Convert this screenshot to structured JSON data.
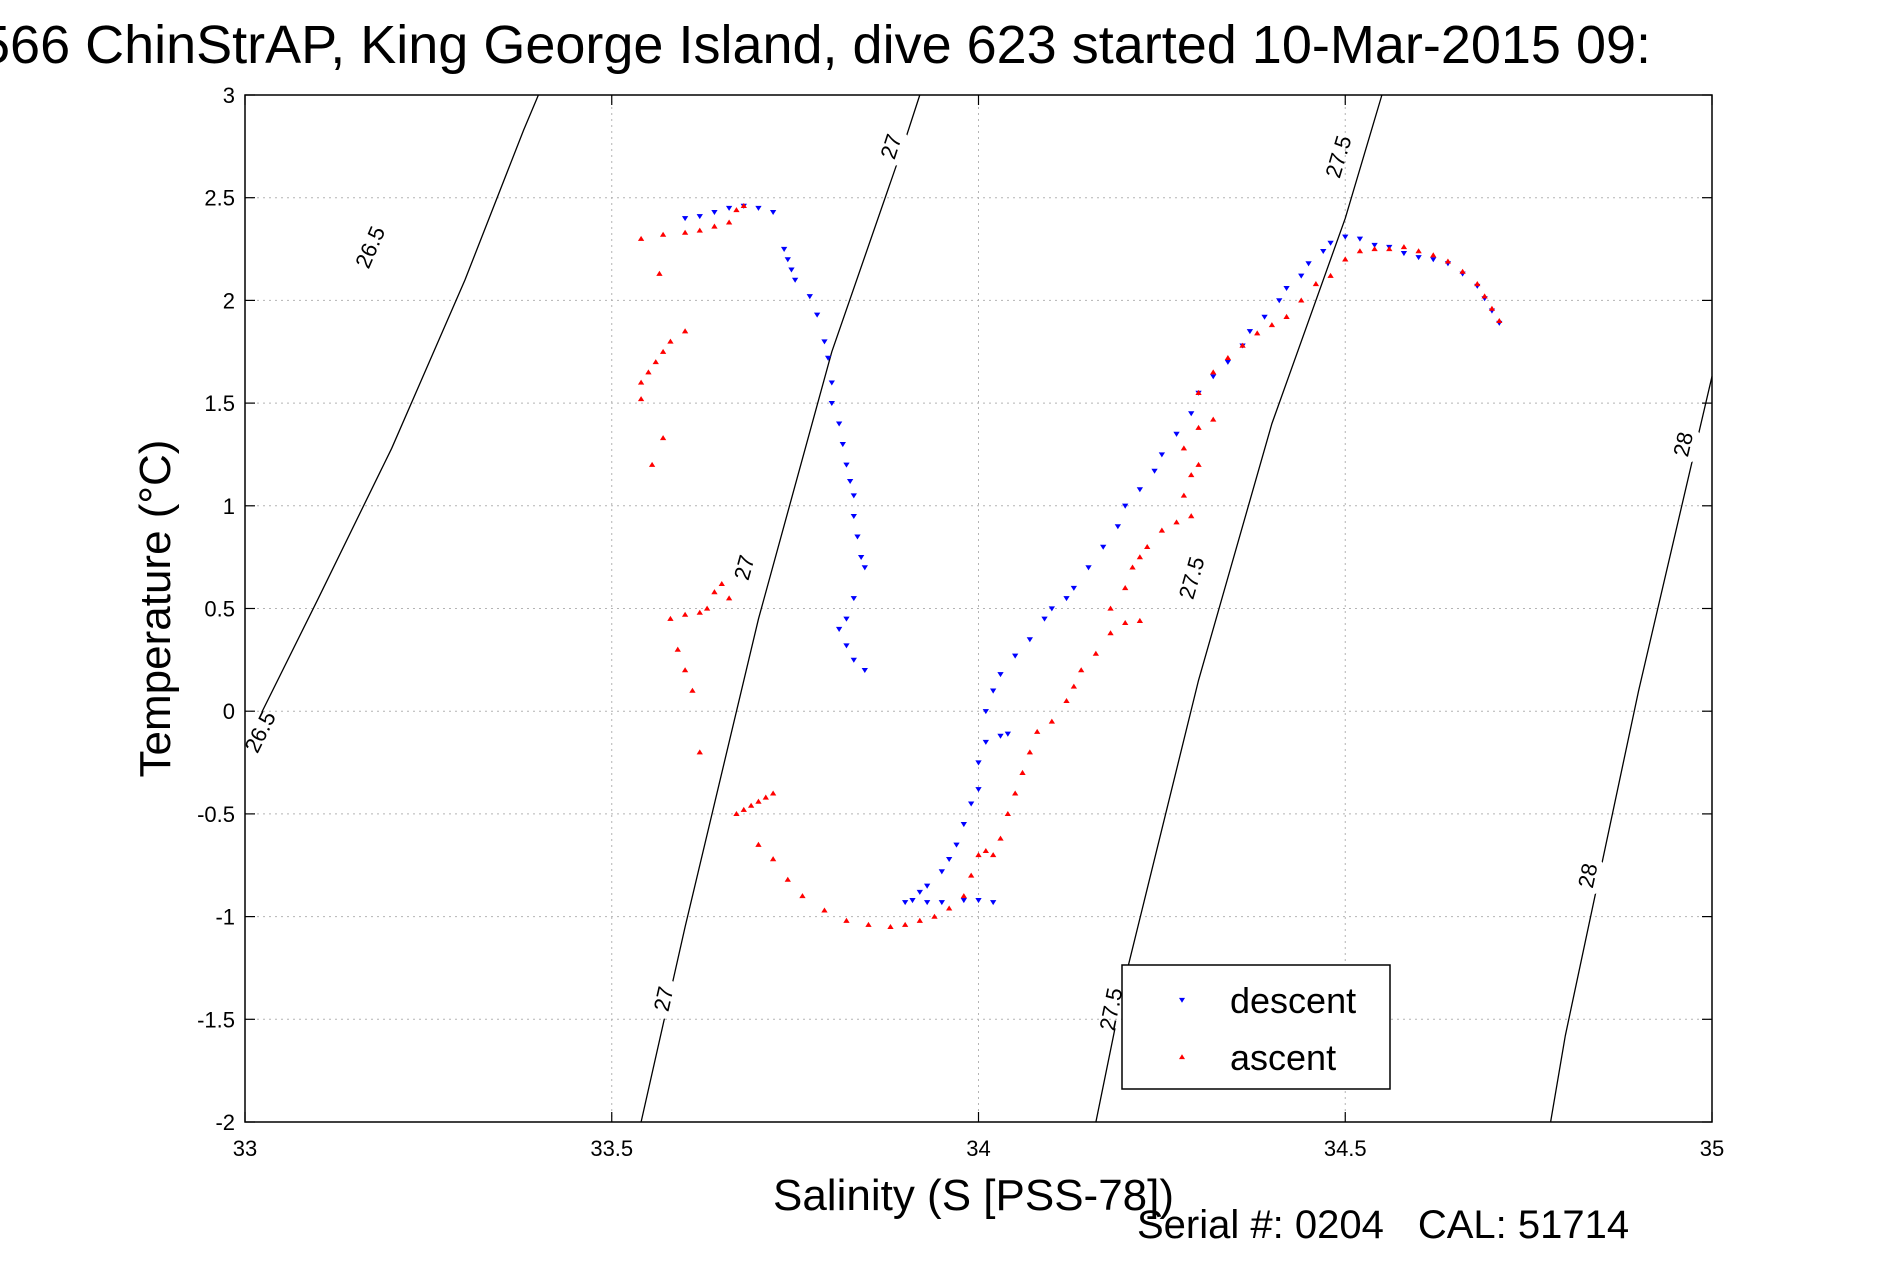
{
  "title": "566 ChinStrAP, King George Island, dive 623 started 10-Mar-2015 09:",
  "footer": {
    "serial": "Serial #: 0204",
    "cal": "CAL: 51714"
  },
  "colors": {
    "descent": "#0000ff",
    "ascent": "#ff0000",
    "axis": "#000000",
    "grid": "#b4b4b4",
    "isopycnal": "#000000"
  },
  "chart_data": {
    "type": "scatter",
    "xlabel": "Salinity (S [PSS-78])",
    "ylabel": "Temperature (°C)",
    "xlim": [
      33,
      35
    ],
    "ylim": [
      -2,
      3
    ],
    "xticks": [
      "33",
      "33.5",
      "34",
      "34.5",
      "35"
    ],
    "yticks": [
      "3",
      "2.5",
      "2",
      "1.5",
      "1",
      "0.5",
      "0",
      "-0.5",
      "-1",
      "-1.5",
      "-2"
    ],
    "grid": true,
    "legend": {
      "position": "bottom-right",
      "entries": [
        "descent",
        "ascent"
      ]
    },
    "isopycnals": [
      {
        "level": "26.5",
        "points": [
          [
            33.0,
            -0.17
          ],
          [
            33.1,
            0.55
          ],
          [
            33.2,
            1.28
          ],
          [
            33.3,
            2.1
          ],
          [
            33.38,
            2.83
          ],
          [
            33.4,
            3.0
          ]
        ],
        "labels": [
          [
            33.02,
            -0.1
          ],
          [
            33.17,
            2.26
          ]
        ]
      },
      {
        "level": "27",
        "points": [
          [
            33.54,
            -2.0
          ],
          [
            33.6,
            -1.05
          ],
          [
            33.7,
            0.45
          ],
          [
            33.8,
            1.75
          ],
          [
            33.9,
            2.78
          ],
          [
            33.92,
            3.0
          ]
        ],
        "labels": [
          [
            33.57,
            -1.4
          ],
          [
            33.68,
            0.7
          ],
          [
            33.88,
            2.75
          ]
        ]
      },
      {
        "level": "27.5",
        "points": [
          [
            34.16,
            -2.0
          ],
          [
            34.2,
            -1.3
          ],
          [
            34.3,
            0.15
          ],
          [
            34.4,
            1.4
          ],
          [
            34.5,
            2.4
          ],
          [
            34.55,
            3.0
          ]
        ],
        "labels": [
          [
            34.18,
            -1.45
          ],
          [
            34.29,
            0.65
          ],
          [
            34.49,
            2.7
          ]
        ]
      },
      {
        "level": "28",
        "points": [
          [
            34.78,
            -2.0
          ],
          [
            34.8,
            -1.58
          ],
          [
            34.9,
            0.1
          ],
          [
            35.0,
            1.63
          ]
        ],
        "labels": [
          [
            34.83,
            -0.8
          ],
          [
            34.96,
            1.3
          ]
        ]
      }
    ],
    "series": [
      {
        "name": "descent",
        "marker": "down-triangle",
        "points": [
          [
            33.6,
            2.4
          ],
          [
            33.62,
            2.41
          ],
          [
            33.64,
            2.43
          ],
          [
            33.66,
            2.45
          ],
          [
            33.68,
            2.46
          ],
          [
            33.7,
            2.45
          ],
          [
            33.72,
            2.43
          ],
          [
            33.735,
            2.25
          ],
          [
            33.74,
            2.2
          ],
          [
            33.745,
            2.15
          ],
          [
            33.75,
            2.1
          ],
          [
            33.77,
            2.02
          ],
          [
            33.78,
            1.93
          ],
          [
            33.79,
            1.8
          ],
          [
            33.795,
            1.72
          ],
          [
            33.8,
            1.6
          ],
          [
            33.8,
            1.5
          ],
          [
            33.81,
            1.4
          ],
          [
            33.815,
            1.3
          ],
          [
            33.82,
            1.2
          ],
          [
            33.825,
            1.12
          ],
          [
            33.83,
            1.05
          ],
          [
            33.83,
            0.95
          ],
          [
            33.835,
            0.85
          ],
          [
            33.84,
            0.75
          ],
          [
            33.845,
            0.7
          ],
          [
            33.83,
            0.55
          ],
          [
            33.82,
            0.45
          ],
          [
            33.81,
            0.4
          ],
          [
            33.82,
            0.32
          ],
          [
            33.83,
            0.25
          ],
          [
            33.845,
            0.2
          ],
          [
            33.9,
            -0.93
          ],
          [
            33.91,
            -0.92
          ],
          [
            33.92,
            -0.88
          ],
          [
            33.93,
            -0.85
          ],
          [
            33.95,
            -0.78
          ],
          [
            33.96,
            -0.72
          ],
          [
            33.97,
            -0.65
          ],
          [
            33.98,
            -0.55
          ],
          [
            33.99,
            -0.45
          ],
          [
            34.0,
            -0.38
          ],
          [
            34.0,
            -0.25
          ],
          [
            34.01,
            -0.15
          ],
          [
            34.03,
            -0.12
          ],
          [
            34.04,
            -0.11
          ],
          [
            34.01,
            0.0
          ],
          [
            34.02,
            0.1
          ],
          [
            34.03,
            0.18
          ],
          [
            34.05,
            0.27
          ],
          [
            34.07,
            0.35
          ],
          [
            34.09,
            0.45
          ],
          [
            34.1,
            0.5
          ],
          [
            34.12,
            0.55
          ],
          [
            34.13,
            0.6
          ],
          [
            34.15,
            0.7
          ],
          [
            34.17,
            0.8
          ],
          [
            34.19,
            0.9
          ],
          [
            34.2,
            1.0
          ],
          [
            34.22,
            1.08
          ],
          [
            34.24,
            1.17
          ],
          [
            34.25,
            1.25
          ],
          [
            34.27,
            1.35
          ],
          [
            34.29,
            1.45
          ],
          [
            34.3,
            1.55
          ],
          [
            34.32,
            1.63
          ],
          [
            34.34,
            1.7
          ],
          [
            34.36,
            1.78
          ],
          [
            34.37,
            1.85
          ],
          [
            34.39,
            1.92
          ],
          [
            34.41,
            2.0
          ],
          [
            34.42,
            2.06
          ],
          [
            34.44,
            2.12
          ],
          [
            34.45,
            2.18
          ],
          [
            34.47,
            2.24
          ],
          [
            34.48,
            2.28
          ],
          [
            34.5,
            2.31
          ],
          [
            34.52,
            2.3
          ],
          [
            34.54,
            2.27
          ],
          [
            34.56,
            2.26
          ],
          [
            34.58,
            2.23
          ],
          [
            34.6,
            2.21
          ],
          [
            34.62,
            2.2
          ],
          [
            34.64,
            2.18
          ],
          [
            34.66,
            2.13
          ],
          [
            34.68,
            2.07
          ],
          [
            34.69,
            2.01
          ],
          [
            34.7,
            1.95
          ],
          [
            34.71,
            1.89
          ],
          [
            33.93,
            -0.93
          ],
          [
            33.95,
            -0.93
          ],
          [
            33.98,
            -0.92
          ],
          [
            34.0,
            -0.92
          ],
          [
            34.02,
            -0.93
          ]
        ]
      },
      {
        "name": "ascent",
        "marker": "up-triangle",
        "points": [
          [
            33.54,
            2.3
          ],
          [
            33.57,
            2.32
          ],
          [
            33.6,
            2.33
          ],
          [
            33.62,
            2.34
          ],
          [
            33.64,
            2.36
          ],
          [
            33.66,
            2.38
          ],
          [
            33.67,
            2.44
          ],
          [
            33.68,
            2.46
          ],
          [
            33.565,
            2.13
          ],
          [
            33.6,
            1.85
          ],
          [
            33.58,
            1.8
          ],
          [
            33.57,
            1.75
          ],
          [
            33.56,
            1.7
          ],
          [
            33.55,
            1.65
          ],
          [
            33.54,
            1.6
          ],
          [
            33.54,
            1.52
          ],
          [
            33.57,
            1.33
          ],
          [
            33.555,
            1.2
          ],
          [
            33.64,
            0.58
          ],
          [
            33.65,
            0.62
          ],
          [
            33.66,
            0.55
          ],
          [
            33.63,
            0.5
          ],
          [
            33.62,
            0.48
          ],
          [
            33.6,
            0.47
          ],
          [
            33.58,
            0.45
          ],
          [
            33.59,
            0.3
          ],
          [
            33.6,
            0.2
          ],
          [
            33.61,
            0.1
          ],
          [
            33.62,
            -0.2
          ],
          [
            33.67,
            -0.5
          ],
          [
            33.68,
            -0.48
          ],
          [
            33.69,
            -0.46
          ],
          [
            33.7,
            -0.44
          ],
          [
            33.71,
            -0.42
          ],
          [
            33.72,
            -0.4
          ],
          [
            33.7,
            -0.65
          ],
          [
            33.72,
            -0.72
          ],
          [
            33.74,
            -0.82
          ],
          [
            33.76,
            -0.9
          ],
          [
            33.79,
            -0.97
          ],
          [
            33.82,
            -1.02
          ],
          [
            33.85,
            -1.04
          ],
          [
            33.88,
            -1.05
          ],
          [
            33.9,
            -1.04
          ],
          [
            33.92,
            -1.02
          ],
          [
            33.94,
            -1.0
          ],
          [
            33.96,
            -0.96
          ],
          [
            33.98,
            -0.9
          ],
          [
            33.99,
            -0.8
          ],
          [
            34.0,
            -0.7
          ],
          [
            34.01,
            -0.68
          ],
          [
            34.02,
            -0.7
          ],
          [
            34.03,
            -0.62
          ],
          [
            34.04,
            -0.5
          ],
          [
            34.05,
            -0.4
          ],
          [
            34.06,
            -0.3
          ],
          [
            34.07,
            -0.2
          ],
          [
            34.08,
            -0.1
          ],
          [
            34.1,
            -0.05
          ],
          [
            34.12,
            0.05
          ],
          [
            34.13,
            0.12
          ],
          [
            34.14,
            0.2
          ],
          [
            34.16,
            0.28
          ],
          [
            34.18,
            0.38
          ],
          [
            34.2,
            0.43
          ],
          [
            34.22,
            0.44
          ],
          [
            34.18,
            0.5
          ],
          [
            34.2,
            0.6
          ],
          [
            34.21,
            0.7
          ],
          [
            34.22,
            0.75
          ],
          [
            34.23,
            0.8
          ],
          [
            34.25,
            0.88
          ],
          [
            34.27,
            0.92
          ],
          [
            34.29,
            0.95
          ],
          [
            34.28,
            1.05
          ],
          [
            34.29,
            1.15
          ],
          [
            34.3,
            1.2
          ],
          [
            34.28,
            1.28
          ],
          [
            34.3,
            1.38
          ],
          [
            34.32,
            1.42
          ],
          [
            34.3,
            1.55
          ],
          [
            34.32,
            1.65
          ],
          [
            34.34,
            1.72
          ],
          [
            34.36,
            1.78
          ],
          [
            34.38,
            1.84
          ],
          [
            34.4,
            1.88
          ],
          [
            34.42,
            1.92
          ],
          [
            34.44,
            2.0
          ],
          [
            34.46,
            2.08
          ],
          [
            34.48,
            2.12
          ],
          [
            34.5,
            2.2
          ],
          [
            34.52,
            2.24
          ],
          [
            34.54,
            2.25
          ],
          [
            34.56,
            2.25
          ],
          [
            34.58,
            2.26
          ],
          [
            34.6,
            2.24
          ],
          [
            34.62,
            2.22
          ],
          [
            34.64,
            2.19
          ],
          [
            34.66,
            2.14
          ],
          [
            34.68,
            2.08
          ],
          [
            34.69,
            2.02
          ],
          [
            34.7,
            1.96
          ],
          [
            34.71,
            1.9
          ]
        ]
      }
    ]
  }
}
